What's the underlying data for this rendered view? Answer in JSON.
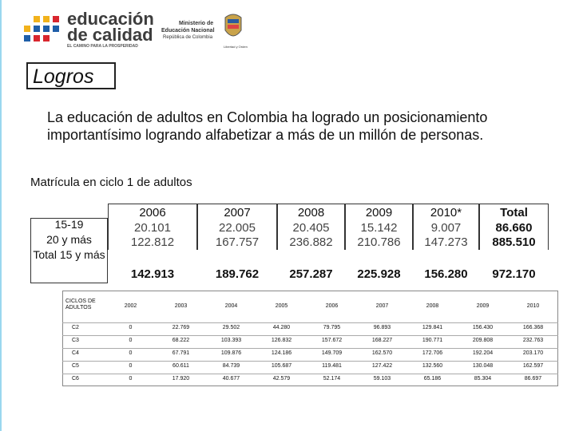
{
  "header": {
    "logo_line1": "educación",
    "logo_line2": "de calidad",
    "logo_tagline": "EL CAMINO PARA LA PROSPERIDAD",
    "ministry_line1": "Ministerio de",
    "ministry_line2": "Educación Nacional",
    "ministry_line3": "República de Colombia",
    "motto": "Libertad y Orden"
  },
  "title": "Logros",
  "paragraph": "La educación de adultos en Colombia ha logrado un posicionamiento importantísimo logrando alfabetizar a más de un millón de personas.",
  "subtitle": "Matrícula en ciclo 1 de adultos",
  "summary_table": {
    "columns": [
      "2006",
      "2007",
      "2008",
      "2009",
      "2010*",
      "Total"
    ],
    "rows": [
      {
        "label": "15-19",
        "values": [
          "20.101",
          "22.005",
          "20.405",
          "15.142",
          "9.007",
          "86.660"
        ]
      },
      {
        "label": "20 y más",
        "values": [
          "122.812",
          "167.757",
          "236.882",
          "210.786",
          "147.273",
          "885.510"
        ]
      },
      {
        "label": "Total 15 y más",
        "values": [
          "142.913",
          "189.762",
          "257.287",
          "225.928",
          "156.280",
          "972.170"
        ]
      }
    ]
  },
  "cycles_table": {
    "columns": [
      "CICLOS DE ADULTOS",
      "2002",
      "2003",
      "2004",
      "2005",
      "2006",
      "2007",
      "2008",
      "2009",
      "2010"
    ],
    "rows": [
      [
        "C2",
        "0",
        "22.769",
        "29.502",
        "44.280",
        "79.795",
        "96.893",
        "129.841",
        "156.430",
        "166.368"
      ],
      [
        "C3",
        "0",
        "68.222",
        "103.393",
        "126.832",
        "157.672",
        "168.227",
        "190.771",
        "209.808",
        "232.763"
      ],
      [
        "C4",
        "0",
        "67.791",
        "109.876",
        "124.186",
        "149.709",
        "162.570",
        "172.706",
        "192.204",
        "203.170"
      ],
      [
        "C5",
        "0",
        "60.611",
        "84.739",
        "105.687",
        "119.481",
        "127.422",
        "132.560",
        "130.048",
        "162.597"
      ],
      [
        "C6",
        "0",
        "17.920",
        "40.677",
        "42.579",
        "52.174",
        "59.103",
        "65.186",
        "85.304",
        "86.697"
      ]
    ]
  }
}
